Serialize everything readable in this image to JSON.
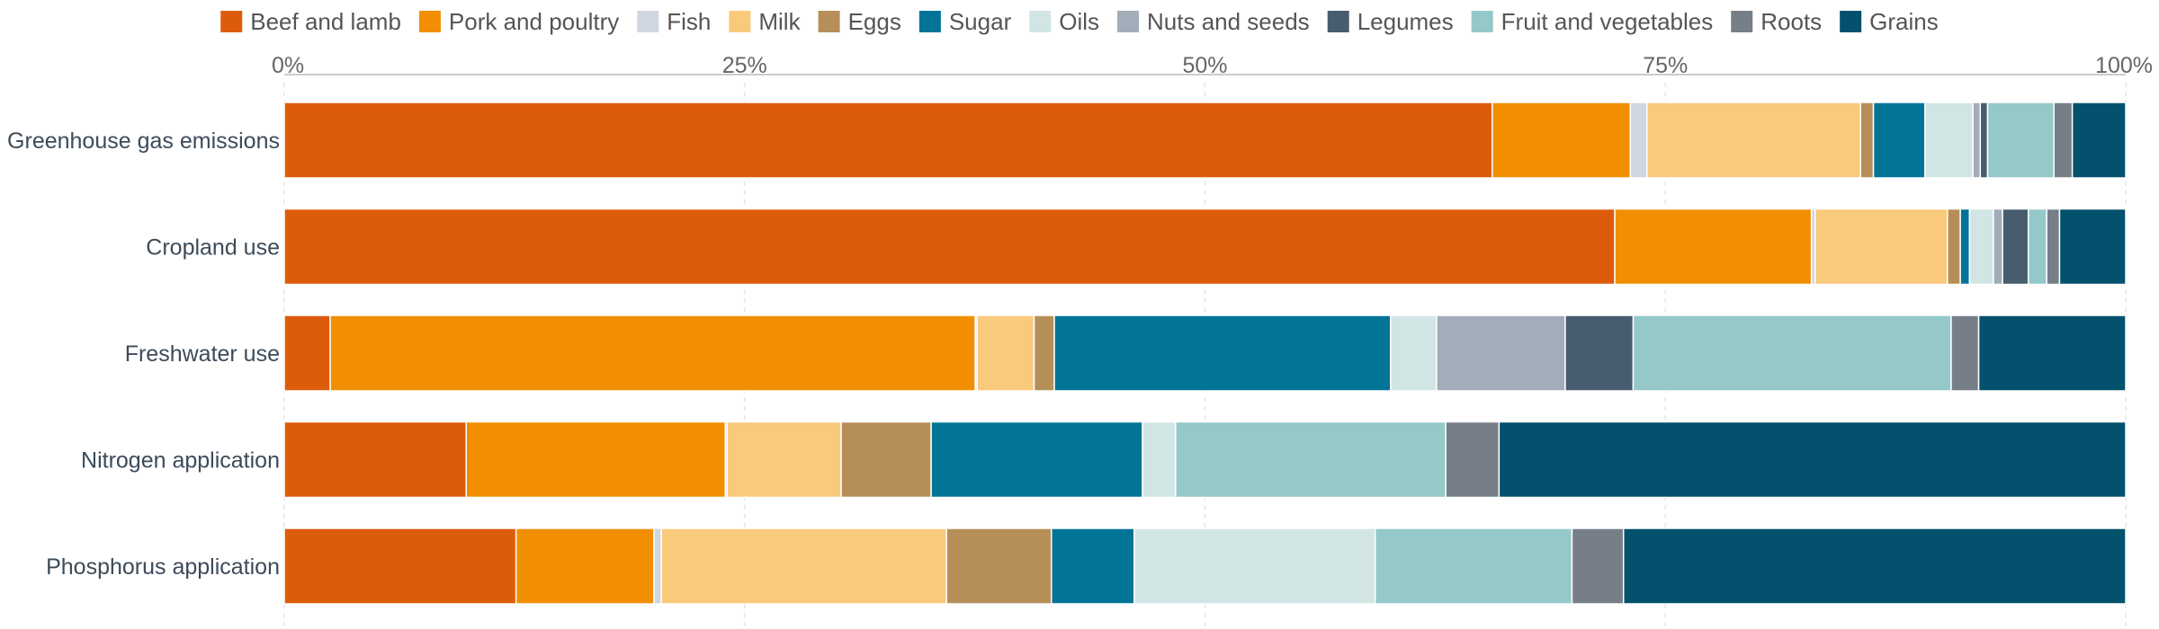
{
  "chart_data": {
    "type": "bar",
    "orientation": "horizontal",
    "stacked": "percent",
    "title": "",
    "xlabel": "",
    "ylabel": "",
    "xlim": [
      0,
      100
    ],
    "x_ticks": [
      "0%",
      "25%",
      "50%",
      "75%",
      "100%"
    ],
    "x_axis_position": "top",
    "grid": true,
    "legend_position": "top",
    "categories": [
      "Greenhouse gas emissions",
      "Cropland use",
      "Freshwater use",
      "Nitrogen application",
      "Phosphorus application"
    ],
    "series": [
      {
        "name": "Beef and lamb",
        "color": "#dd5c0b",
        "values": [
          65.6,
          72.4,
          2.5,
          9.9,
          12.6
        ]
      },
      {
        "name": "Pork and poultry",
        "color": "#f28e01",
        "values": [
          7.5,
          10.7,
          35.1,
          14.1,
          7.5
        ]
      },
      {
        "name": "Fish",
        "color": "#d0d7e2",
        "values": [
          0.9,
          0.2,
          0.1,
          0.1,
          0.4
        ]
      },
      {
        "name": "Milk",
        "color": "#f9c97c",
        "values": [
          11.6,
          7.2,
          3.1,
          6.2,
          15.5
        ]
      },
      {
        "name": "Eggs",
        "color": "#b68f58",
        "values": [
          0.7,
          0.7,
          1.1,
          4.9,
          5.7
        ]
      },
      {
        "name": "Sugar",
        "color": "#027498",
        "values": [
          2.8,
          0.5,
          18.3,
          11.5,
          4.5
        ]
      },
      {
        "name": "Oils",
        "color": "#d1e6e4",
        "values": [
          2.6,
          1.3,
          2.5,
          1.8,
          13.1
        ]
      },
      {
        "name": "Nuts and seeds",
        "color": "#a2adb9",
        "values": [
          0.4,
          0.5,
          7.0,
          0.0,
          0.0
        ]
      },
      {
        "name": "Legumes",
        "color": "#475d6f",
        "values": [
          0.4,
          1.4,
          3.7,
          0.0,
          0.0
        ]
      },
      {
        "name": "Fruit and vegetables",
        "color": "#95c8c8",
        "values": [
          3.6,
          1.0,
          17.3,
          14.7,
          10.7
        ]
      },
      {
        "name": "Roots",
        "color": "#767e88",
        "values": [
          1.0,
          0.7,
          1.5,
          2.9,
          2.8
        ]
      },
      {
        "name": "Grains",
        "color": "#03516c",
        "values": [
          2.9,
          3.6,
          8.0,
          34.1,
          27.3
        ]
      }
    ]
  }
}
